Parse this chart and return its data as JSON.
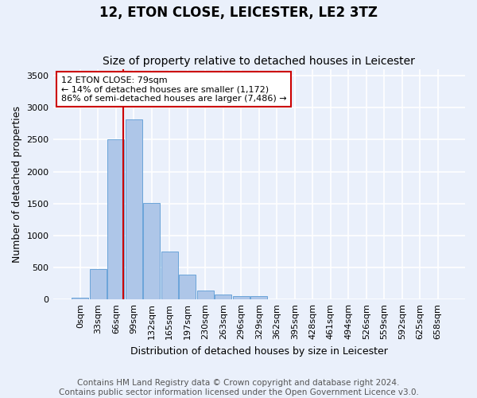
{
  "title": "12, ETON CLOSE, LEICESTER, LE2 3TZ",
  "subtitle": "Size of property relative to detached houses in Leicester",
  "xlabel": "Distribution of detached houses by size in Leicester",
  "ylabel": "Number of detached properties",
  "categories": [
    "0sqm",
    "33sqm",
    "66sqm",
    "99sqm",
    "132sqm",
    "165sqm",
    "197sqm",
    "230sqm",
    "263sqm",
    "296sqm",
    "329sqm",
    "362sqm",
    "395sqm",
    "428sqm",
    "461sqm",
    "494sqm",
    "526sqm",
    "559sqm",
    "592sqm",
    "625sqm",
    "658sqm"
  ],
  "values": [
    30,
    470,
    2500,
    2820,
    1510,
    750,
    390,
    145,
    80,
    55,
    55,
    0,
    0,
    0,
    0,
    0,
    0,
    0,
    0,
    0,
    0
  ],
  "bar_color": "#aec6e8",
  "bar_edge_color": "#5b9bd5",
  "background_color": "#eaf0fb",
  "grid_color": "#ffffff",
  "vline_color": "#cc0000",
  "annotation_text": "12 ETON CLOSE: 79sqm\n← 14% of detached houses are smaller (1,172)\n86% of semi-detached houses are larger (7,486) →",
  "annotation_box_color": "#cc0000",
  "ylim": [
    0,
    3600
  ],
  "yticks": [
    0,
    500,
    1000,
    1500,
    2000,
    2500,
    3000,
    3500
  ],
  "footer_line1": "Contains HM Land Registry data © Crown copyright and database right 2024.",
  "footer_line2": "Contains public sector information licensed under the Open Government Licence v3.0.",
  "title_fontsize": 12,
  "subtitle_fontsize": 10,
  "axis_label_fontsize": 9,
  "tick_fontsize": 8,
  "footer_fontsize": 7.5,
  "annotation_fontsize": 8
}
